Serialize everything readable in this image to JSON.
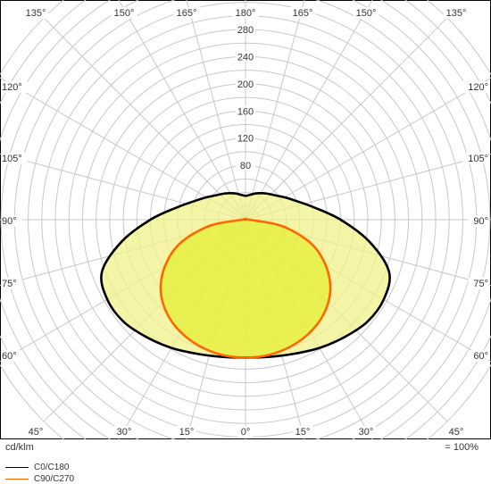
{
  "chart_data": {
    "type": "polar",
    "unit_label": "cd/klm",
    "scale_note": "= 100%",
    "radial_ticks": [
      80,
      120,
      160,
      200,
      240,
      280
    ],
    "radial_max": 280,
    "angle_labels_top": [
      "135°",
      "150°",
      "165°",
      "180°",
      "165°",
      "150°",
      "135°"
    ],
    "angle_labels_bottom": [
      "45°",
      "30°",
      "15°",
      "0°",
      "15°",
      "30°",
      "45°"
    ],
    "angle_labels_left": [
      "120°",
      "105°",
      "90°",
      "75°",
      "60°"
    ],
    "angle_labels_right": [
      "120°",
      "105°",
      "90°",
      "75°",
      "60°"
    ],
    "gamma": [
      0,
      10,
      20,
      30,
      40,
      50,
      60,
      70,
      80,
      90,
      100,
      110,
      120,
      130,
      140,
      150,
      160,
      170,
      180
    ],
    "series": [
      {
        "name": "C0/C180",
        "color": "#000000",
        "values": [
          203,
          205,
          210,
          218,
          226,
          234,
          235,
          225,
          185,
          140,
          103,
          80,
          66,
          56,
          50,
          45,
          41,
          37,
          35
        ]
      },
      {
        "name": "C90/C270",
        "color": "#ff6600",
        "values": [
          203,
          202,
          198,
          191,
          180,
          163,
          137,
          103,
          55,
          5,
          0,
          0,
          0,
          0,
          0,
          0,
          0,
          0,
          0
        ]
      }
    ]
  }
}
